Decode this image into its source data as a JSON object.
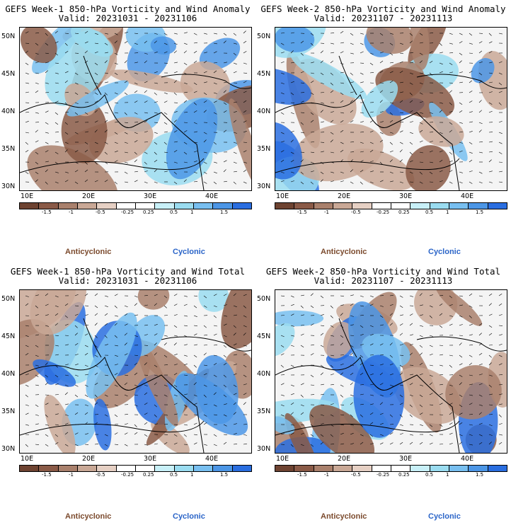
{
  "panels": [
    {
      "title": "GEFS Week-1 850-hPa Vorticity and Wind Anomaly",
      "valid": "Valid: 20231031 - 20231106",
      "seed": 3
    },
    {
      "title": "GEFS Week-2 850-hPa Vorticity and Wind Anomaly",
      "valid": "Valid: 20231107 - 20231113",
      "seed": 7
    },
    {
      "title": "GEFS Week-1 850-hPa Vorticity and Wind Total",
      "valid": "Valid: 20231031 - 20231106",
      "seed": 11
    },
    {
      "title": "GEFS Week-2 850-hPa Vorticity and Wind Total",
      "valid": "Valid: 20231107 - 20231113",
      "seed": 17
    }
  ],
  "lat_labels": [
    "50N",
    "45N",
    "40N",
    "35N",
    "30N"
  ],
  "lon_labels": [
    "10E",
    "20E",
    "30E",
    "40E"
  ],
  "colorbar": {
    "colors": [
      "#6e4331",
      "#8a5a47",
      "#a9806c",
      "#c9a896",
      "#e6d0c4",
      "#ffffff",
      "#ffffff",
      "#c8f0f8",
      "#9adcf0",
      "#78bff0",
      "#4c96e6",
      "#2a6ee0"
    ],
    "labels": [
      "-1.5",
      "-1",
      "-0.5",
      "-0.25",
      "0.25",
      "0.5",
      "1",
      "1.5"
    ],
    "anticyclonic": "Anticyclonic",
    "cyclonic": "Cyclonic"
  }
}
